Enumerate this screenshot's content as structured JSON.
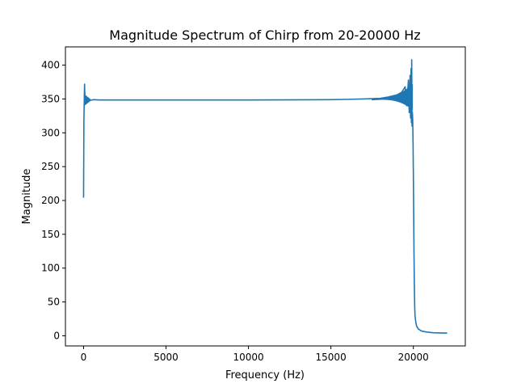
{
  "chart_data": {
    "type": "line",
    "title": "Magnitude Spectrum of Chirp from 20-20000 Hz",
    "xlabel": "Frequency (Hz)",
    "ylabel": "Magnitude",
    "xlim": [
      -1100,
      23150
    ],
    "ylim": [
      -15,
      427
    ],
    "xticks": [
      0,
      5000,
      10000,
      15000,
      20000
    ],
    "xtick_labels": [
      "0",
      "5000",
      "10000",
      "15000",
      "20000"
    ],
    "yticks": [
      0,
      50,
      100,
      150,
      200,
      250,
      300,
      350,
      400
    ],
    "ytick_labels": [
      "0",
      "50",
      "100",
      "150",
      "200",
      "250",
      "300",
      "350",
      "400"
    ],
    "grid": false,
    "line_color": "#1f77b4",
    "series": [
      {
        "points": [
          [
            0,
            204
          ],
          [
            10,
            260
          ],
          [
            20,
            318
          ],
          [
            40,
            345
          ],
          [
            60,
            372
          ],
          [
            80,
            355
          ],
          [
            100,
            342
          ],
          [
            140,
            352
          ],
          [
            200,
            346
          ],
          [
            300,
            350
          ],
          [
            400,
            348
          ],
          [
            600,
            349
          ],
          [
            1000,
            348.5
          ],
          [
            5000,
            348.5
          ],
          [
            10000,
            348.5
          ],
          [
            15000,
            349
          ],
          [
            16000,
            349.5
          ],
          [
            17000,
            350
          ],
          [
            18000,
            351
          ],
          [
            18500,
            353
          ],
          [
            19000,
            356
          ],
          [
            19300,
            360
          ],
          [
            19500,
            368
          ],
          [
            19600,
            340
          ],
          [
            19700,
            378
          ],
          [
            19750,
            330
          ],
          [
            19800,
            385
          ],
          [
            19830,
            322
          ],
          [
            19860,
            395
          ],
          [
            19880,
            315
          ],
          [
            19900,
            408
          ],
          [
            19920,
            310
          ],
          [
            19940,
            330
          ],
          [
            19960,
            320
          ],
          [
            19980,
            290
          ],
          [
            20000,
            240
          ],
          [
            20020,
            180
          ],
          [
            20040,
            120
          ],
          [
            20060,
            75
          ],
          [
            20080,
            45
          ],
          [
            20100,
            30
          ],
          [
            20150,
            20
          ],
          [
            20200,
            14
          ],
          [
            20300,
            10
          ],
          [
            20500,
            7
          ],
          [
            20800,
            5.5
          ],
          [
            21200,
            4.5
          ],
          [
            21600,
            4.2
          ],
          [
            22050,
            4
          ]
        ]
      }
    ]
  }
}
